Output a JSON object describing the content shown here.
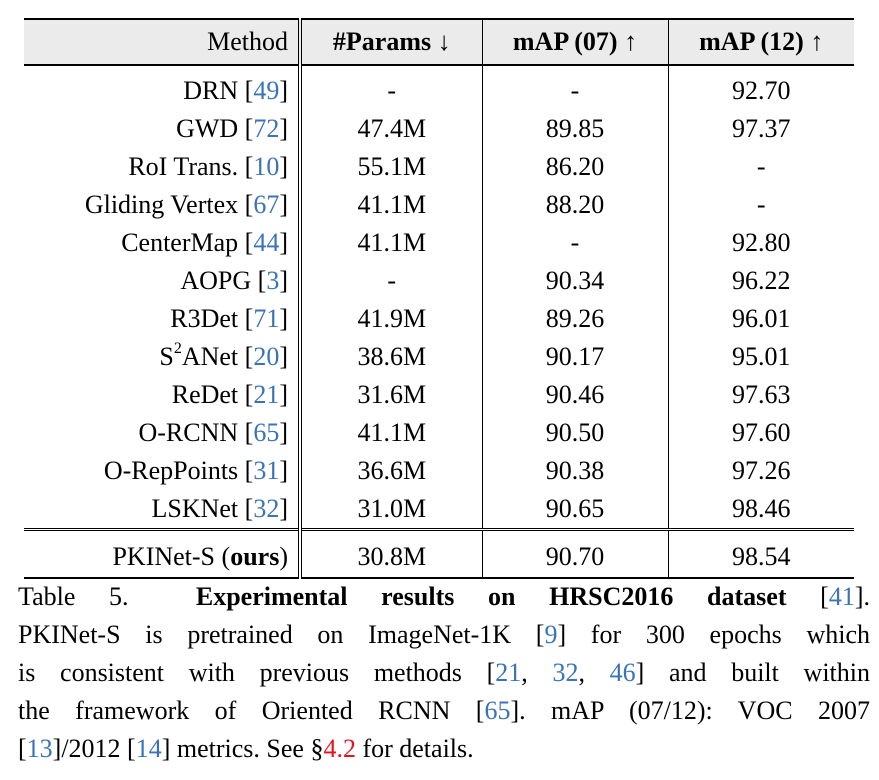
{
  "table": {
    "header": {
      "method": "Method",
      "params": "#Params ↓",
      "map07": "mAP (07) ↑",
      "map12": "mAP (12) ↑"
    },
    "rows": [
      {
        "name": "DRN",
        "ref": "49",
        "params": "-",
        "map07": "-",
        "map12": "92.70"
      },
      {
        "name": "GWD",
        "ref": "72",
        "params": "47.4M",
        "map07": "89.85",
        "map12": "97.37"
      },
      {
        "name": "RoI Trans.",
        "ref": "10",
        "params": "55.1M",
        "map07": "86.20",
        "map12": "-"
      },
      {
        "name": "Gliding Vertex",
        "ref": "67",
        "params": "41.1M",
        "map07": "88.20",
        "map12": "-"
      },
      {
        "name": "CenterMap",
        "ref": "44",
        "params": "41.1M",
        "map07": "-",
        "map12": "92.80"
      },
      {
        "name": "AOPG",
        "ref": "3",
        "params": "-",
        "map07": "90.34",
        "map12": "96.22"
      },
      {
        "name": "R3Det",
        "ref": "71",
        "params": "41.9M",
        "map07": "89.26",
        "map12": "96.01"
      },
      {
        "name_prefix": "S",
        "name_sup": "2",
        "name": "ANet",
        "ref": "20",
        "params": "38.6M",
        "map07": "90.17",
        "map12": "95.01"
      },
      {
        "name": "ReDet",
        "ref": "21",
        "params": "31.6M",
        "map07": "90.46",
        "map12": "97.63"
      },
      {
        "name": "O-RCNN",
        "ref": "65",
        "params": "41.1M",
        "map07": "90.50",
        "map12": "97.60"
      },
      {
        "name": "O-RepPoints",
        "ref": "31",
        "params": "36.6M",
        "map07": "90.38",
        "map12": "97.26"
      },
      {
        "name": "LSKNet",
        "ref": "32",
        "params": "31.0M",
        "map07": "90.65",
        "map12": "98.46"
      }
    ],
    "ours": {
      "name": "PKINet-S",
      "ours_tag": "ours",
      "params": "30.8M",
      "map07": "90.70",
      "map12": "98.54"
    }
  },
  "caption": {
    "label": "Table 5.",
    "title": "Experimental results on HRSC2016 dataset",
    "title_ref": "41",
    "text1": "PKINet-S is pretrained on ImageNet-1K [",
    "ref_imagenet": "9",
    "text2": "] for 300 epochs which",
    "text3": "is consistent with previous methods [",
    "ref_a": "21",
    "ref_b": "32",
    "ref_c": "46",
    "text4": "] and built within",
    "text5": "the framework of Oriented RCNN [",
    "ref_orcnn": "65",
    "text6": "]. mAP (07/12): VOC 2007",
    "ref_voc07": "13",
    "text7": "]/2012 [",
    "ref_voc12": "14",
    "text8": "] metrics. See §",
    "section_ref": "4.2",
    "text9": " for details."
  }
}
